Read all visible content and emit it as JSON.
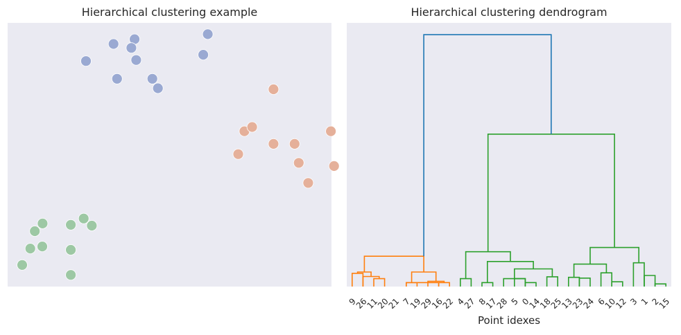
{
  "chart_data": [
    {
      "type": "scatter",
      "title": "Hierarchical clustering example",
      "xlim": [
        0,
        10
      ],
      "ylim": [
        0,
        10
      ],
      "grid": false,
      "clusters": [
        {
          "color": "#9aa9d2",
          "points": [
            [
              3.27,
              9.2
            ],
            [
              3.92,
              9.38
            ],
            [
              3.82,
              9.05
            ],
            [
              2.42,
              8.55
            ],
            [
              3.97,
              8.59
            ],
            [
              6.18,
              9.57
            ],
            [
              6.04,
              8.79
            ],
            [
              3.38,
              7.88
            ],
            [
              4.47,
              7.88
            ],
            [
              4.64,
              7.52
            ]
          ]
        },
        {
          "color": "#e5b09a",
          "points": [
            [
              8.21,
              7.48
            ],
            [
              7.31,
              5.89
            ],
            [
              7.55,
              6.05
            ],
            [
              9.98,
              5.89
            ],
            [
              8.21,
              5.41
            ],
            [
              8.86,
              5.41
            ],
            [
              7.12,
              5.02
            ],
            [
              8.99,
              4.69
            ],
            [
              10.08,
              4.57
            ],
            [
              9.28,
              3.93
            ]
          ]
        },
        {
          "color": "#9dc8a4",
          "points": [
            [
              2.35,
              2.58
            ],
            [
              1.08,
              2.39
            ],
            [
              1.95,
              2.34
            ],
            [
              2.6,
              2.31
            ],
            [
              0.84,
              2.1
            ],
            [
              0.7,
              1.44
            ],
            [
              1.07,
              1.52
            ],
            [
              1.95,
              1.39
            ],
            [
              0.45,
              0.82
            ],
            [
              1.95,
              0.44
            ]
          ]
        }
      ]
    },
    {
      "type": "dendrogram",
      "title": "Hierarchical clustering dendrogram",
      "xlabel": "Point idexes",
      "ylabel": "",
      "ylim": [
        0,
        10
      ],
      "leaf_labels": [
        "9",
        "26",
        "11",
        "20",
        "21",
        "7",
        "19",
        "29",
        "16",
        "22",
        "4",
        "27",
        "8",
        "17",
        "28",
        "5",
        "0",
        "14",
        "18",
        "25",
        "13",
        "23",
        "24",
        "6",
        "10",
        "12",
        "3",
        "1",
        "2",
        "15"
      ],
      "links": [
        {
          "x": [
            0.5,
            0.5,
            1.5,
            1.5
          ],
          "y": [
            0,
            0.5,
            0.5,
            0
          ],
          "color": "#ff7f0e"
        },
        {
          "x": [
            2.5,
            2.5,
            3.5,
            3.5
          ],
          "y": [
            0,
            0.3,
            0.3,
            0
          ],
          "color": "#ff7f0e"
        },
        {
          "x": [
            1.5,
            1.5,
            3.0,
            3.0
          ],
          "y": [
            0,
            0.38,
            0.38,
            0.3
          ],
          "color": "#ff7f0e"
        },
        {
          "x": [
            1.0,
            1.0,
            2.25,
            2.25
          ],
          "y": [
            0.5,
            0.55,
            0.55,
            0.38
          ],
          "color": "#ff7f0e"
        },
        {
          "x": [
            5.5,
            5.5,
            8.5,
            8.5
          ],
          "y": [
            0,
            0.15,
            0.15,
            0
          ],
          "color": "#ff7f0e"
        },
        {
          "x": [
            5.5,
            5.5,
            6.5,
            6.5
          ],
          "y": [
            0,
            0.15,
            0.15,
            0
          ],
          "color": "#ff7f0e"
        },
        {
          "x": [
            8.5,
            8.5,
            9.5,
            9.5
          ],
          "y": [
            0,
            0.15,
            0.15,
            0
          ],
          "color": "#ff7f0e"
        },
        {
          "x": [
            7.5,
            7.5,
            9.0,
            9.0
          ],
          "y": [
            0,
            0.2,
            0.2,
            0.15
          ],
          "color": "#ff7f0e"
        },
        {
          "x": [
            6.0,
            6.0,
            8.25,
            8.25
          ],
          "y": [
            0.15,
            0.55,
            0.55,
            0.2
          ],
          "color": "#ff7f0e"
        },
        {
          "x": [
            1.625,
            1.625,
            7.125,
            7.125
          ],
          "y": [
            0.55,
            1.15,
            1.15,
            0.55
          ],
          "color": "#ff7f0e"
        },
        {
          "x": [
            10.5,
            10.5,
            11.5,
            11.5
          ],
          "y": [
            0,
            0.3,
            0.3,
            0
          ],
          "color": "#2ca02c"
        },
        {
          "x": [
            12.5,
            12.5,
            13.5,
            13.5
          ],
          "y": [
            0,
            0.15,
            0.15,
            0
          ],
          "color": "#2ca02c"
        },
        {
          "x": [
            15.5,
            15.5,
            16.5,
            16.5
          ],
          "y": [
            0,
            0.3,
            0.3,
            0
          ],
          "color": "#2ca02c"
        },
        {
          "x": [
            16.5,
            16.5,
            17.5,
            17.5
          ],
          "y": [
            0,
            0.15,
            0.15,
            0
          ],
          "color": "#2ca02c"
        },
        {
          "x": [
            14.5,
            14.5,
            16.5,
            16.5
          ],
          "y": [
            0,
            0.3,
            0.3,
            0.15
          ],
          "color": "#2ca02c"
        },
        {
          "x": [
            18.5,
            18.5,
            19.5,
            19.5
          ],
          "y": [
            0,
            0.37,
            0.37,
            0
          ],
          "color": "#2ca02c"
        },
        {
          "x": [
            15.5,
            15.5,
            19.0,
            19.0
          ],
          "y": [
            0.3,
            0.67,
            0.67,
            0.37
          ],
          "color": "#2ca02c"
        },
        {
          "x": [
            13.0,
            13.0,
            17.25,
            17.25
          ],
          "y": [
            0.15,
            0.95,
            0.95,
            0.67
          ],
          "color": "#2ca02c"
        },
        {
          "x": [
            11.0,
            11.0,
            15.125,
            15.125
          ],
          "y": [
            0.3,
            1.32,
            1.32,
            0.95
          ],
          "color": "#2ca02c"
        },
        {
          "x": [
            20.5,
            20.5,
            21.5,
            21.5
          ],
          "y": [
            0,
            0.35,
            0.35,
            0
          ],
          "color": "#2ca02c"
        },
        {
          "x": [
            21.5,
            21.5,
            22.5,
            22.5
          ],
          "y": [
            0,
            0.32,
            0.32,
            0
          ],
          "color": "#2ca02c"
        },
        {
          "x": [
            23.5,
            23.5,
            24.5,
            24.5
          ],
          "y": [
            0,
            0.52,
            0.52,
            0
          ],
          "color": "#2ca02c"
        },
        {
          "x": [
            24.5,
            24.5,
            25.5,
            25.5
          ],
          "y": [
            0,
            0.18,
            0.18,
            0
          ],
          "color": "#2ca02c"
        },
        {
          "x": [
            21.0,
            21.0,
            24.0,
            24.0
          ],
          "y": [
            0.35,
            0.85,
            0.85,
            0.52
          ],
          "color": "#2ca02c"
        },
        {
          "x": [
            26.5,
            26.5,
            27.5,
            27.5
          ],
          "y": [
            0,
            0.9,
            0.9,
            0
          ],
          "color": "#2ca02c"
        },
        {
          "x": [
            27.5,
            27.5,
            28.5,
            28.5
          ],
          "y": [
            0,
            0.42,
            0.42,
            0
          ],
          "color": "#2ca02c"
        },
        {
          "x": [
            28.5,
            28.5,
            29.5,
            29.5
          ],
          "y": [
            0,
            0.1,
            0.1,
            0
          ],
          "color": "#2ca02c"
        },
        {
          "x": [
            22.5,
            22.5,
            27.0,
            27.0
          ],
          "y": [
            0.85,
            1.48,
            1.48,
            0.9
          ],
          "color": "#2ca02c"
        },
        {
          "x": [
            13.06,
            13.06,
            24.75,
            24.75
          ],
          "y": [
            1.32,
            5.78,
            5.78,
            1.48
          ],
          "color": "#2ca02c"
        },
        {
          "x": [
            7.125,
            7.125,
            18.9,
            18.9
          ],
          "y": [
            1.15,
            9.55,
            9.55,
            5.78
          ],
          "color": "#1f77b4"
        }
      ]
    }
  ]
}
